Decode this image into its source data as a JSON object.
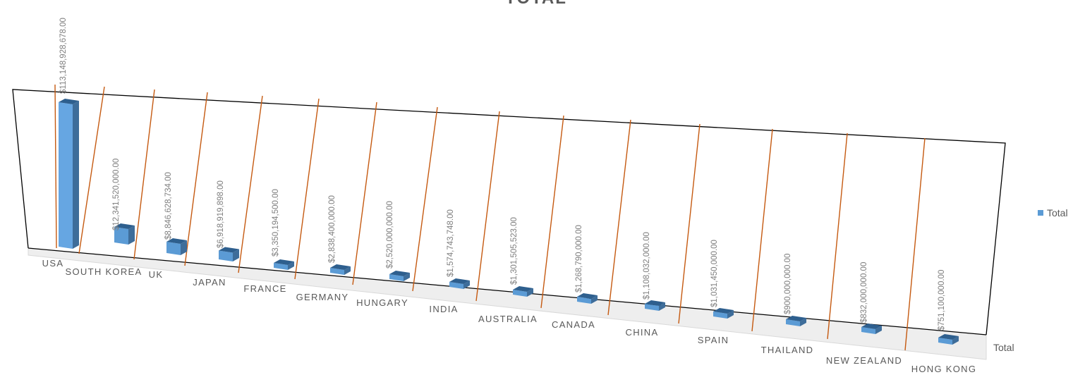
{
  "chart_data": {
    "type": "bar",
    "title": "TOTAL",
    "categories": [
      "USA",
      "SOUTH KOREA",
      "UK",
      "JAPAN",
      "FRANCE",
      "GERMANY",
      "HUNGARY",
      "INDIA",
      "AUSTRALIA",
      "CANADA",
      "CHINA",
      "SPAIN",
      "THAILAND",
      "NEW ZEALAND",
      "HONG KONG"
    ],
    "series": [
      {
        "name": "Total",
        "values": [
          113148928678.0,
          12341520000.0,
          8846628734.0,
          6918919898.0,
          3350194500.0,
          2838400000.0,
          2520000000.0,
          1574743748.0,
          1301505523.0,
          1268790000.0,
          1108032000.0,
          1031450000.0,
          900000000.0,
          832000000.0,
          751100000.0
        ],
        "data_labels": [
          "$113,148,928,678.00",
          "$12,341,520,000.00",
          "$8,846,628,734.00",
          "$6,918,919,898.00",
          "$3,350,194,500.00",
          "$2,838,400,000.00",
          "$2,520,000,000.00",
          "$1,574,743,748.00",
          "$1,301,505,523.00",
          "$1,268,790,000.00",
          "$1,108,032,000.00",
          "$1,031,450,000.00",
          "$900,000,000.00",
          "$832,000,000.00",
          "$751,100,000.00"
        ]
      }
    ],
    "depth_axis_label": "Total",
    "legend": {
      "position": "right",
      "label": "Total"
    },
    "colors": {
      "bar_front": "#5b9bd5",
      "bar_side": "#3e6d9a",
      "bar_top": "#2e5f8e",
      "highlight_front": "#66a6e2",
      "gridline": "#c55a11",
      "floor": "#d9d9d9",
      "frame": "#000000",
      "text": "#595959",
      "value_text": "#7f7f7f"
    },
    "grid": true,
    "projection": "3d-perspective"
  }
}
